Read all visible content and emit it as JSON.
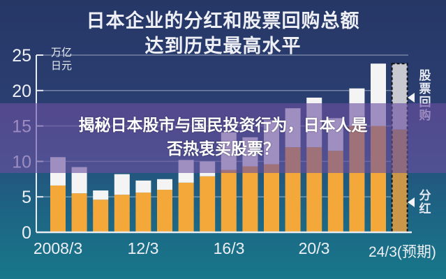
{
  "overlay_headline": {
    "line1": "揭秘日本股市与国民投资行为，日本人是",
    "line2": "否热衷买股票？"
  },
  "chart_data": {
    "type": "bar",
    "stacked": true,
    "title": [
      "日本企业的分红和股票回购总额",
      "达到历史最高水平"
    ],
    "ylabel": "万亿日元",
    "ylim": [
      0,
      25
    ],
    "yticks": [
      0,
      5,
      10,
      15,
      20,
      25
    ],
    "grid": true,
    "categories": [
      "2008/3",
      "2009/3",
      "2010/3",
      "2011/3",
      "2012/3",
      "2013/3",
      "2014/3",
      "2015/3",
      "2016/3",
      "2017/3",
      "2018/3",
      "2019/3",
      "2020/3",
      "2021/3",
      "2022/3",
      "2023/3",
      "2024/3"
    ],
    "xtick_labels": [
      "2008/3",
      "12/3",
      "16/3",
      "20/3",
      "24/3(预期)"
    ],
    "xtick_categories": [
      "2008/3",
      "2012/3",
      "2016/3",
      "2020/3",
      "2024/3"
    ],
    "series": [
      {
        "name": "分红",
        "color": "#f5a83a",
        "values": [
          6.6,
          5.5,
          4.6,
          5.3,
          5.6,
          6.0,
          7.0,
          7.9,
          8.8,
          9.3,
          9.6,
          12.0,
          12.0,
          11.5,
          15.0,
          15.0,
          14.5
        ]
      },
      {
        "name": "股票回购",
        "color": "#f4f4f4",
        "values": [
          4.0,
          3.7,
          1.3,
          2.9,
          1.7,
          1.5,
          3.2,
          2.1,
          5.3,
          4.1,
          6.2,
          5.5,
          7.0,
          4.6,
          5.3,
          8.8,
          9.3
        ]
      }
    ],
    "forecast_category": "2024/3",
    "forecast_colors": {
      "分红": "#c9964a",
      "股票回购": "#c9c9d2"
    },
    "legend": [
      {
        "label": "股票回购"
      },
      {
        "label": "分红"
      }
    ],
    "legend_position": "right"
  }
}
